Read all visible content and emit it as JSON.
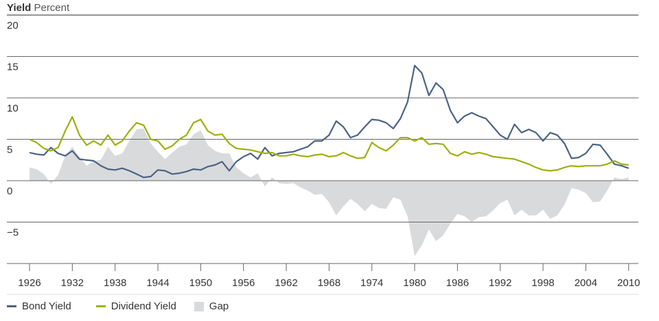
{
  "chart_data": {
    "type": "line",
    "title": "Yield",
    "ylabel": "Percent",
    "xlabel": "",
    "ylim": [
      -10,
      20
    ],
    "yticks": [
      20,
      15,
      10,
      5,
      0,
      -5
    ],
    "ytick_labels": [
      "20",
      "15",
      "10",
      "5",
      "0",
      "−5"
    ],
    "xlim": [
      1924.5,
      2011.5
    ],
    "xticks": [
      1926,
      1932,
      1938,
      1944,
      1950,
      1956,
      1962,
      1968,
      1974,
      1980,
      1986,
      1992,
      1998,
      2004,
      2010
    ],
    "xtick_labels": [
      "1926",
      "1932",
      "1938",
      "1944",
      "1950",
      "1956",
      "1962",
      "1968",
      "1974",
      "1980",
      "1986",
      "1992",
      "1998",
      "2004",
      "2010"
    ],
    "grid": true,
    "legend_placement": "bottom-left",
    "x_start": 1926,
    "series": [
      {
        "name": "Bond Yield",
        "kind": "line",
        "color": "#4a6285",
        "values": [
          3.4,
          3.2,
          3.1,
          4.0,
          3.3,
          3.0,
          3.6,
          2.6,
          2.5,
          2.4,
          1.8,
          1.4,
          1.3,
          1.5,
          1.2,
          0.8,
          0.4,
          0.5,
          1.3,
          1.2,
          0.8,
          0.9,
          1.1,
          1.4,
          1.3,
          1.7,
          1.9,
          2.3,
          1.2,
          2.3,
          2.9,
          3.3,
          2.6,
          4.0,
          3.0,
          3.3,
          3.4,
          3.5,
          3.8,
          4.1,
          4.8,
          4.8,
          5.5,
          7.2,
          6.5,
          5.2,
          5.5,
          6.5,
          7.4,
          7.3,
          7.0,
          6.3,
          7.5,
          9.5,
          13.9,
          13.0,
          10.3,
          11.8,
          11.0,
          8.5,
          7.0,
          7.8,
          8.2,
          7.8,
          7.5,
          6.5,
          5.5,
          5.0,
          6.8,
          5.8,
          6.2,
          5.8,
          4.8,
          5.8,
          5.5,
          4.5,
          2.7,
          2.8,
          3.3,
          4.4,
          4.3,
          3.2,
          2.0,
          1.8,
          1.5
        ]
      },
      {
        "name": "Dividend Yield",
        "kind": "line",
        "color": "#9bb00e",
        "values": [
          5.0,
          4.6,
          3.9,
          3.6,
          4.0,
          6.0,
          7.7,
          5.5,
          4.3,
          4.8,
          4.3,
          5.5,
          4.3,
          4.8,
          6.0,
          7.0,
          6.7,
          5.0,
          4.8,
          3.8,
          4.2,
          5.0,
          5.5,
          7.0,
          7.4,
          6.0,
          5.5,
          5.6,
          4.5,
          3.9,
          3.8,
          3.7,
          3.5,
          3.3,
          3.4,
          3.0,
          3.0,
          3.2,
          3.0,
          2.9,
          3.1,
          3.2,
          2.9,
          3.0,
          3.4,
          3.0,
          2.7,
          2.8,
          4.6,
          4.0,
          3.6,
          4.3,
          5.2,
          5.2,
          4.8,
          5.2,
          4.4,
          4.5,
          4.4,
          3.3,
          3.0,
          3.5,
          3.2,
          3.4,
          3.2,
          2.9,
          2.8,
          2.7,
          2.6,
          2.3,
          2.0,
          1.6,
          1.3,
          1.2,
          1.3,
          1.6,
          1.8,
          1.7,
          1.8,
          1.8,
          1.8,
          2.0,
          2.4,
          2.0,
          1.9
        ]
      },
      {
        "name": "Gap",
        "kind": "area",
        "color": "#d9dadc",
        "values": [
          1.6,
          1.4,
          0.8,
          -0.4,
          0.7,
          3.0,
          4.1,
          2.9,
          1.8,
          2.4,
          2.5,
          4.1,
          3.0,
          3.3,
          4.8,
          6.2,
          6.3,
          4.5,
          3.5,
          2.6,
          3.4,
          4.1,
          4.4,
          5.6,
          6.1,
          4.3,
          3.6,
          3.3,
          3.3,
          1.6,
          0.9,
          0.4,
          0.9,
          -0.7,
          0.4,
          -0.3,
          -0.4,
          -0.3,
          -0.8,
          -1.2,
          -1.7,
          -1.6,
          -2.6,
          -4.2,
          -3.1,
          -2.2,
          -2.8,
          -3.7,
          -2.8,
          -3.3,
          -3.4,
          -2.0,
          -2.3,
          -4.3,
          -9.1,
          -7.8,
          -5.9,
          -7.3,
          -6.6,
          -5.2,
          -4.0,
          -4.3,
          -5.0,
          -4.4,
          -4.3,
          -3.6,
          -2.7,
          -2.3,
          -4.2,
          -3.5,
          -4.2,
          -4.2,
          -3.5,
          -4.6,
          -4.2,
          -2.9,
          -0.9,
          -1.1,
          -1.5,
          -2.6,
          -2.5,
          -1.2,
          0.4,
          0.2,
          0.4
        ]
      }
    ]
  }
}
